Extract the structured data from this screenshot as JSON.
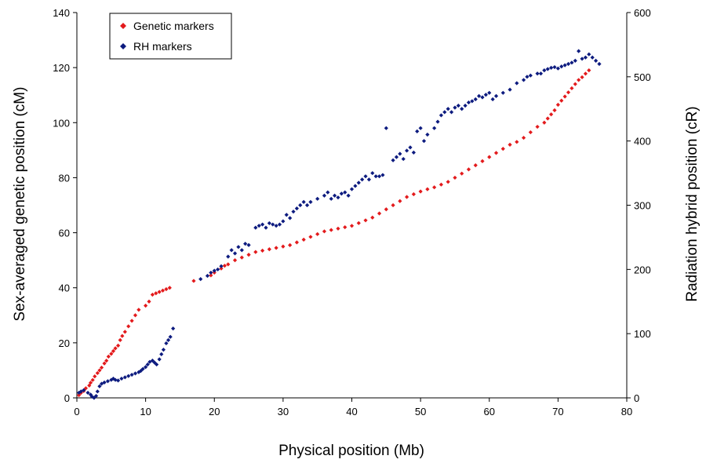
{
  "chart_data": {
    "type": "scatter",
    "title": "",
    "xlabel": "Physical position (Mb)",
    "ylabel": "Sex-averaged genetic position (cM)",
    "y2label": "Radiation hybrid position (cR)",
    "xlim": [
      0,
      80
    ],
    "ylim": [
      0,
      140
    ],
    "y2lim": [
      0,
      600
    ],
    "xticks": [
      "0",
      "10",
      "20",
      "30",
      "40",
      "50",
      "60",
      "70",
      "80"
    ],
    "yticks": [
      "0",
      "20",
      "40",
      "60",
      "80",
      "100",
      "120",
      "140"
    ],
    "y2ticks": [
      "0",
      "100",
      "200",
      "300",
      "400",
      "500",
      "600"
    ],
    "grid": false,
    "legend_position": "top-left",
    "marker": "diamond",
    "series": [
      {
        "name": "Genetic markers",
        "color": "#e31a1c",
        "axis": "left",
        "x": [
          0.3,
          0.6,
          1.0,
          1.3,
          1.8,
          2.0,
          2.3,
          2.6,
          3.0,
          3.3,
          3.6,
          4.0,
          4.3,
          4.6,
          5.0,
          5.3,
          5.6,
          6.0,
          6.3,
          6.6,
          7.0,
          7.5,
          8.0,
          8.5,
          9.0,
          10.0,
          10.5,
          11.0,
          11.5,
          12.0,
          12.5,
          13.0,
          13.5,
          17.0,
          19.5,
          20.0,
          21.0,
          21.5,
          22.0,
          23.0,
          24.0,
          25.0,
          26.0,
          27.0,
          28.0,
          29.0,
          30.0,
          31.0,
          32.0,
          33.0,
          34.0,
          35.0,
          36.0,
          37.0,
          38.0,
          39.0,
          40.0,
          41.0,
          42.0,
          43.0,
          44.0,
          45.0,
          46.0,
          47.0,
          48.0,
          49.0,
          50.0,
          51.0,
          52.0,
          53.0,
          54.0,
          55.0,
          56.0,
          57.0,
          58.0,
          59.0,
          60.0,
          61.0,
          62.0,
          63.0,
          64.0,
          65.0,
          66.0,
          67.0,
          68.0,
          68.5,
          69.0,
          69.5,
          70.0,
          70.5,
          71.0,
          71.5,
          72.0,
          72.5,
          73.0,
          73.5,
          74.0,
          74.5
        ],
        "y": [
          1.0,
          1.8,
          2.5,
          3.5,
          4.5,
          5.5,
          6.5,
          7.8,
          9.0,
          10.0,
          11.0,
          12.5,
          13.5,
          15.0,
          16.0,
          17.0,
          18.0,
          19.0,
          21.0,
          22.5,
          24.0,
          26.0,
          28.0,
          30.0,
          32.0,
          33.5,
          35.0,
          37.5,
          38.0,
          38.5,
          39.0,
          39.5,
          40.0,
          42.5,
          44.5,
          45.5,
          47.0,
          48.0,
          48.5,
          50.0,
          51.0,
          52.0,
          53.0,
          53.5,
          54.0,
          54.5,
          55.0,
          55.5,
          56.5,
          57.5,
          58.5,
          59.5,
          60.5,
          61.0,
          61.5,
          62.0,
          62.5,
          63.5,
          64.5,
          65.5,
          67.0,
          68.5,
          70.0,
          71.5,
          73.0,
          74.0,
          75.0,
          75.8,
          76.5,
          77.5,
          78.5,
          80.0,
          81.5,
          83.0,
          84.5,
          86.0,
          87.5,
          89.0,
          90.5,
          92.0,
          93.0,
          94.5,
          96.5,
          98.5,
          100.0,
          101.5,
          103.0,
          104.5,
          106.5,
          108.0,
          109.5,
          111.0,
          112.5,
          114.0,
          115.5,
          116.5,
          117.8,
          119.0
        ]
      },
      {
        "name": "RH markers",
        "color": "#0d1b7f",
        "axis": "right",
        "x": [
          0.3,
          0.6,
          1.0,
          1.6,
          2.0,
          2.2,
          2.5,
          2.8,
          3.0,
          3.3,
          3.6,
          4.0,
          4.5,
          5.0,
          5.3,
          5.6,
          6.0,
          6.5,
          7.0,
          7.5,
          8.0,
          8.5,
          9.0,
          9.3,
          9.6,
          10.0,
          10.3,
          10.6,
          11.0,
          11.3,
          11.6,
          12.0,
          12.3,
          12.6,
          13.0,
          13.3,
          13.6,
          14.0,
          18.0,
          19.0,
          19.5,
          20.0,
          20.5,
          21.0,
          22.0,
          22.5,
          23.0,
          23.5,
          24.0,
          24.5,
          25.0,
          26.0,
          26.5,
          27.0,
          27.5,
          28.0,
          28.5,
          29.0,
          29.5,
          30.0,
          30.5,
          31.0,
          31.5,
          32.0,
          32.5,
          33.0,
          33.5,
          34.0,
          35.0,
          36.0,
          36.5,
          37.0,
          37.5,
          38.0,
          38.5,
          39.0,
          39.5,
          40.0,
          40.5,
          41.0,
          41.5,
          42.0,
          42.5,
          43.0,
          43.5,
          44.0,
          44.5,
          45.0,
          46.0,
          46.5,
          47.0,
          47.5,
          48.0,
          48.5,
          49.0,
          49.5,
          50.0,
          50.5,
          51.0,
          52.0,
          52.5,
          53.0,
          53.5,
          54.0,
          54.5,
          55.0,
          55.5,
          56.0,
          56.5,
          57.0,
          57.5,
          58.0,
          58.5,
          59.0,
          59.5,
          60.0,
          60.5,
          61.0,
          62.0,
          63.0,
          64.0,
          65.0,
          65.5,
          66.0,
          67.0,
          67.5,
          68.0,
          68.5,
          69.0,
          69.5,
          70.0,
          70.5,
          71.0,
          71.5,
          72.0,
          72.5,
          73.0,
          73.5,
          74.0,
          74.5,
          75.0,
          75.5,
          76.0
        ],
        "y": [
          8,
          10,
          12,
          8,
          5,
          2,
          0,
          3,
          10,
          18,
          22,
          24,
          26,
          28,
          30,
          28,
          27,
          30,
          32,
          34,
          36,
          38,
          40,
          42,
          45,
          48,
          52,
          56,
          58,
          55,
          52,
          60,
          68,
          75,
          85,
          90,
          95,
          108,
          185,
          190,
          195,
          198,
          200,
          205,
          220,
          230,
          225,
          235,
          230,
          240,
          238,
          265,
          268,
          270,
          265,
          272,
          270,
          268,
          270,
          275,
          285,
          280,
          290,
          295,
          300,
          305,
          300,
          305,
          310,
          315,
          320,
          310,
          315,
          312,
          318,
          320,
          315,
          325,
          330,
          335,
          340,
          345,
          340,
          350,
          345,
          345,
          347,
          420,
          370,
          375,
          380,
          372,
          385,
          390,
          382,
          415,
          420,
          400,
          410,
          420,
          430,
          440,
          445,
          450,
          445,
          452,
          455,
          450,
          455,
          460,
          462,
          465,
          470,
          468,
          472,
          475,
          465,
          470,
          475,
          480,
          490,
          495,
          500,
          502,
          505,
          505,
          510,
          512,
          514,
          515,
          513,
          516,
          518,
          520,
          522,
          525,
          540,
          528,
          530,
          535,
          530,
          525,
          520
        ]
      }
    ]
  }
}
